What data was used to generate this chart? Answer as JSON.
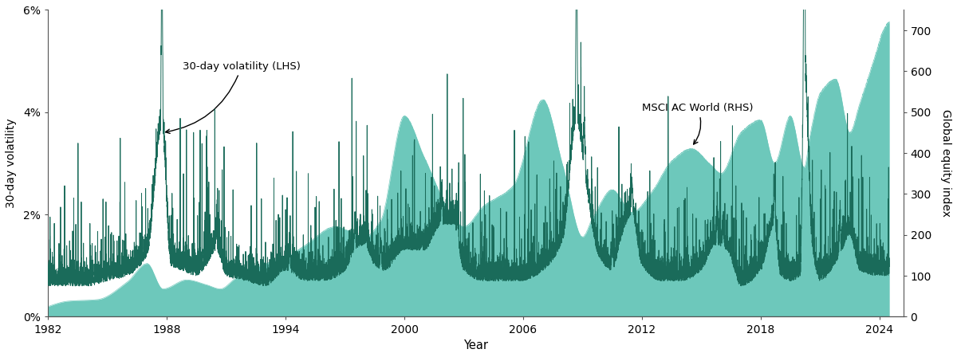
{
  "title": "",
  "xlabel": "Year",
  "ylabel_left": "30-day volatility",
  "ylabel_right": "Global equity index",
  "annotation_vol": "30-day volatility (LHS)",
  "annotation_msci": "MSCI AC World (RHS)",
  "ylim_left": [
    0,
    0.06
  ],
  "ylim_right": [
    0,
    750
  ],
  "yticks_left": [
    0,
    0.02,
    0.04,
    0.06
  ],
  "ytick_labels_left": [
    "0%",
    "2%",
    "4%",
    "6%"
  ],
  "yticks_right": [
    0,
    100,
    200,
    300,
    400,
    500,
    600,
    700
  ],
  "xticks": [
    1982,
    1988,
    1994,
    2000,
    2006,
    2012,
    2018,
    2024
  ],
  "fill_color": "#6DC8BB",
  "line_color": "#1A6B5A",
  "fill_alpha": 1.0,
  "background_color": "#ffffff",
  "spine_color": "#555555",
  "start_year": 1982,
  "end_year": 2024.5
}
